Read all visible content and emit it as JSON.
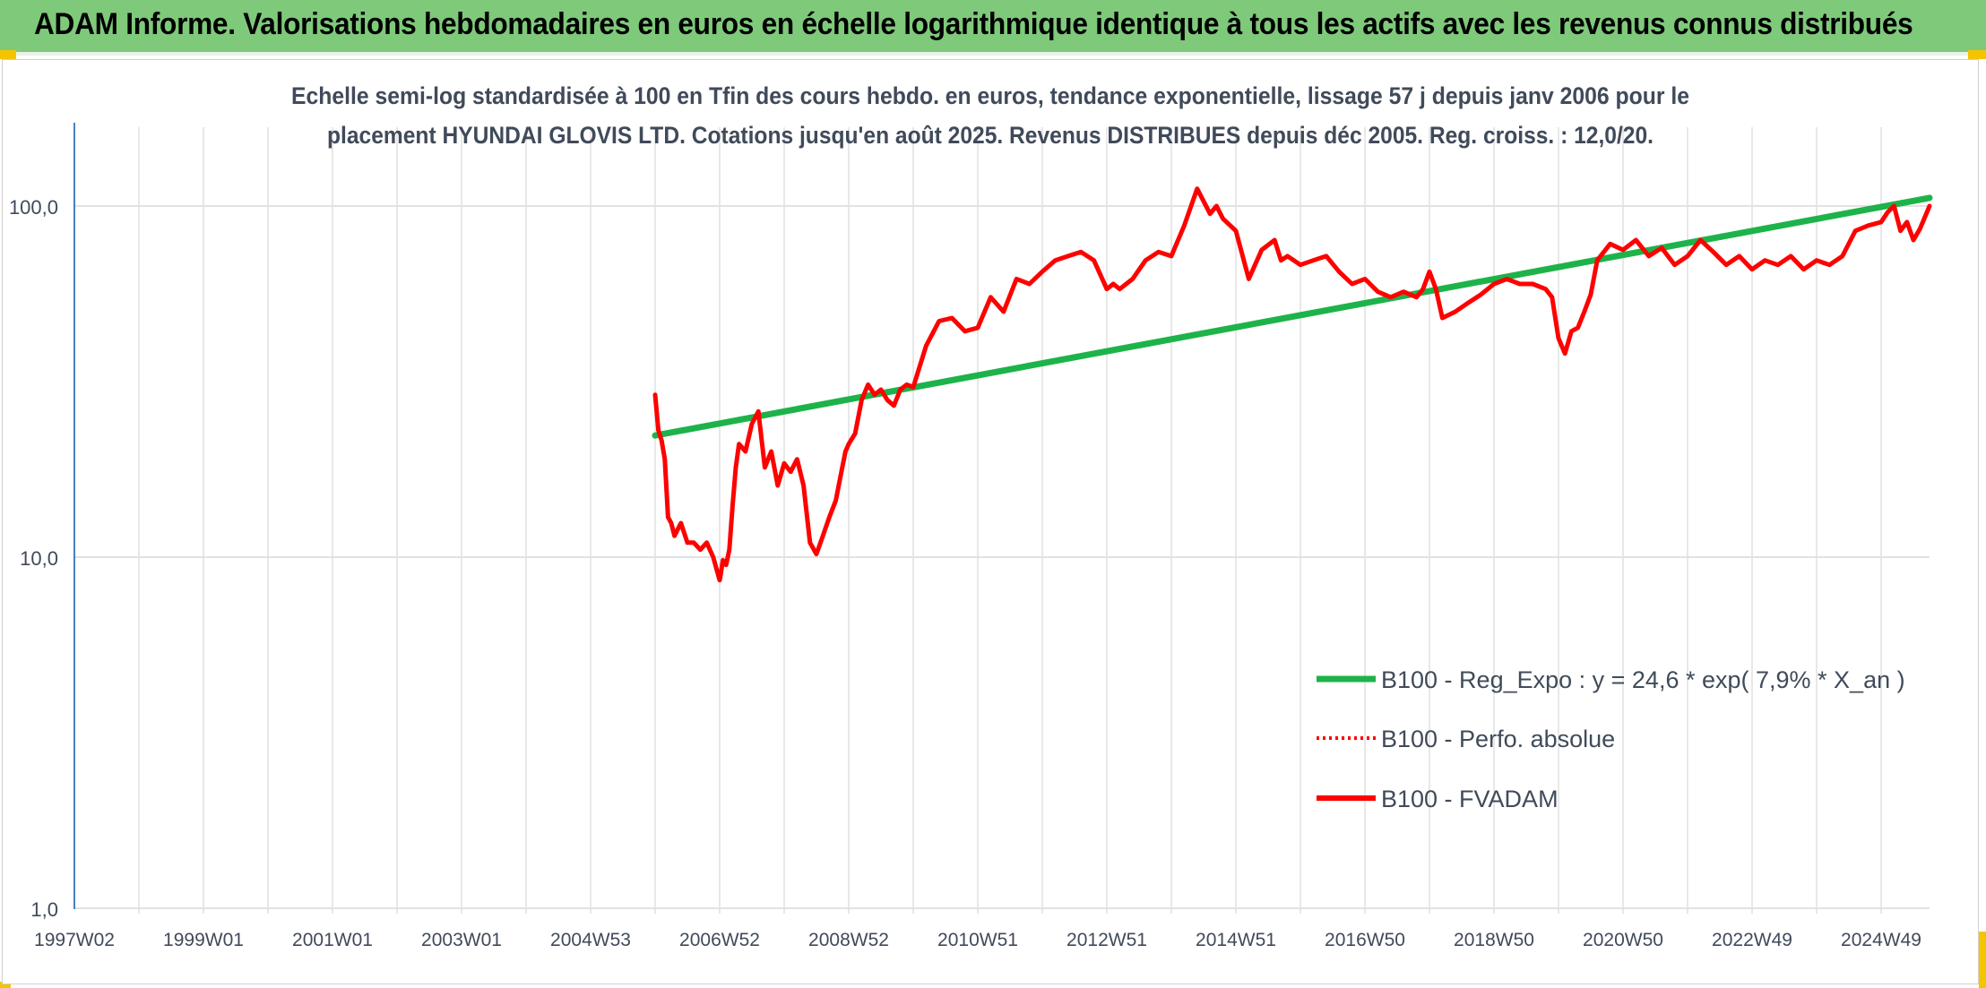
{
  "banner": {
    "title": "ADAM Informe. Valorisations hebdomadaires en euros en échelle logarithmique identique à tous les actifs avec les revenus connus distribués"
  },
  "colors": {
    "banner_bg": "#7ec97a",
    "accent_corner": "#f5c400",
    "trend_line": "#1db34a",
    "fvadam_line": "#ff0000",
    "perf_line": "#ff0000",
    "axis_text": "#404a5a",
    "grid": "#d9d9d9"
  },
  "chart_data": {
    "type": "line",
    "title_lines": [
      "Echelle semi-log standardisée à 100 en Tfin des cours hebdo. en euros, tendance exponentielle, lissage 57 j depuis janv 2006 pour le",
      "placement HYUNDAI GLOVIS LTD. Cotations jusqu'en août 2025. Revenus DISTRIBUES depuis déc 2005. Reg. croiss. : 12,0/20."
    ],
    "y_scale": "log",
    "ylim": [
      1,
      200
    ],
    "y_ticks": [
      {
        "value": 100,
        "label": "100,0"
      },
      {
        "value": 10,
        "label": "10,0"
      },
      {
        "value": 1,
        "label": "1,0"
      }
    ],
    "xlim": [
      1997.0,
      2025.75
    ],
    "x_ticks": [
      {
        "value": 1997.0,
        "label": "1997W02"
      },
      {
        "value": 1999.0,
        "label": "1999W01"
      },
      {
        "value": 2001.0,
        "label": "2001W01"
      },
      {
        "value": 2003.0,
        "label": "2003W01"
      },
      {
        "value": 2005.0,
        "label": "2004W53"
      },
      {
        "value": 2007.0,
        "label": "2006W52"
      },
      {
        "value": 2009.0,
        "label": "2008W52"
      },
      {
        "value": 2011.0,
        "label": "2010W51"
      },
      {
        "value": 2013.0,
        "label": "2012W51"
      },
      {
        "value": 2015.0,
        "label": "2014W51"
      },
      {
        "value": 2017.0,
        "label": "2016W50"
      },
      {
        "value": 2019.0,
        "label": "2018W50"
      },
      {
        "value": 2021.0,
        "label": "2020W50"
      },
      {
        "value": 2023.0,
        "label": "2022W49"
      },
      {
        "value": 2025.0,
        "label": "2024W49"
      }
    ],
    "x_minor_ticks": [
      1998,
      2000,
      2002,
      2004,
      2006,
      2008,
      2010,
      2012,
      2014,
      2016,
      2018,
      2020,
      2022,
      2024
    ],
    "grid": true,
    "legend_position": "bottom-right",
    "series": [
      {
        "name": "B100 - Reg_Expo : y = 24,6 * exp( 7,9% *  X_an )",
        "style": "solid-thick",
        "color": "#1db34a",
        "x": [
          2006.0,
          2025.75
        ],
        "y": [
          22.2,
          105.5
        ]
      },
      {
        "name": "B100 - Perfo. absolue",
        "style": "dotted",
        "color": "#ff0000",
        "x": [],
        "y": []
      },
      {
        "name": "B100 - FVADAM",
        "style": "solid",
        "color": "#ff0000",
        "x": [
          2006.0,
          2006.05,
          2006.1,
          2006.15,
          2006.2,
          2006.25,
          2006.3,
          2006.35,
          2006.4,
          2006.5,
          2006.6,
          2006.7,
          2006.8,
          2006.9,
          2007.0,
          2007.02,
          2007.05,
          2007.1,
          2007.15,
          2007.2,
          2007.25,
          2007.3,
          2007.4,
          2007.5,
          2007.6,
          2007.7,
          2007.8,
          2007.9,
          2008.0,
          2008.1,
          2008.2,
          2008.3,
          2008.4,
          2008.5,
          2008.6,
          2008.7,
          2008.8,
          2008.9,
          2008.95,
          2009.0,
          2009.1,
          2009.2,
          2009.3,
          2009.4,
          2009.5,
          2009.6,
          2009.7,
          2009.8,
          2009.9,
          2010.0,
          2010.2,
          2010.4,
          2010.6,
          2010.8,
          2011.0,
          2011.2,
          2011.4,
          2011.6,
          2011.8,
          2012.0,
          2012.2,
          2012.4,
          2012.6,
          2012.8,
          2013.0,
          2013.1,
          2013.2,
          2013.4,
          2013.6,
          2013.8,
          2014.0,
          2014.2,
          2014.4,
          2014.6,
          2014.7,
          2014.8,
          2015.0,
          2015.2,
          2015.4,
          2015.6,
          2015.7,
          2015.8,
          2016.0,
          2016.2,
          2016.4,
          2016.6,
          2016.8,
          2017.0,
          2017.2,
          2017.4,
          2017.6,
          2017.8,
          2017.9,
          2018.0,
          2018.1,
          2018.2,
          2018.4,
          2018.6,
          2018.8,
          2019.0,
          2019.2,
          2019.4,
          2019.6,
          2019.8,
          2019.9,
          2020.0,
          2020.1,
          2020.2,
          2020.3,
          2020.4,
          2020.5,
          2020.6,
          2020.8,
          2021.0,
          2021.2,
          2021.4,
          2021.6,
          2021.8,
          2022.0,
          2022.2,
          2022.4,
          2022.6,
          2022.8,
          2023.0,
          2023.2,
          2023.4,
          2023.6,
          2023.8,
          2024.0,
          2024.2,
          2024.4,
          2024.6,
          2024.8,
          2025.0,
          2025.1,
          2025.2,
          2025.3,
          2025.4,
          2025.5,
          2025.6,
          2025.75
        ],
        "y": [
          29.0,
          23.0,
          21.5,
          19.0,
          13.0,
          12.5,
          11.5,
          12.0,
          12.5,
          11.0,
          11.0,
          10.5,
          11.0,
          10.0,
          8.6,
          9.0,
          9.8,
          9.5,
          10.5,
          14.0,
          18.0,
          21.0,
          20.0,
          24.0,
          26.0,
          18.0,
          20.0,
          16.0,
          18.5,
          17.5,
          19.0,
          16.0,
          11.0,
          10.2,
          11.5,
          13.0,
          14.5,
          18.0,
          20.0,
          21.0,
          22.5,
          28.0,
          31.0,
          29.0,
          30.0,
          28.0,
          27.0,
          30.0,
          31.0,
          30.5,
          40.0,
          47.0,
          48.0,
          44.0,
          45.0,
          55.0,
          50.0,
          62.0,
          60.0,
          65.0,
          70.0,
          72.0,
          74.0,
          70.0,
          58.0,
          60.0,
          58.0,
          62.0,
          70.0,
          74.0,
          72.0,
          88.0,
          112.0,
          95.0,
          100.0,
          92.0,
          85.0,
          62.0,
          75.0,
          80.0,
          70.0,
          72.0,
          68.0,
          70.0,
          72.0,
          65.0,
          60.0,
          62.0,
          57.0,
          55.0,
          57.0,
          55.0,
          58.0,
          65.0,
          58.0,
          48.0,
          50.0,
          53.0,
          56.0,
          60.0,
          62.0,
          60.0,
          60.0,
          58.0,
          55.0,
          42.0,
          38.0,
          44.0,
          45.0,
          50.0,
          56.0,
          70.0,
          78.0,
          75.0,
          80.0,
          72.0,
          76.0,
          68.0,
          72.0,
          80.0,
          74.0,
          68.0,
          72.0,
          66.0,
          70.0,
          68.0,
          72.0,
          66.0,
          70.0,
          68.0,
          72.0,
          85.0,
          88.0,
          90.0,
          96.0,
          100.0,
          85.0,
          90.0,
          80.0,
          86.0,
          100.0
        ]
      }
    ]
  }
}
